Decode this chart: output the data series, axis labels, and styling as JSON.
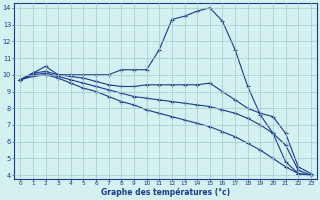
{
  "xlabel": "Graphe des températures (°c)",
  "bg_color": "#d4f0f0",
  "grid_color": "#a0cccc",
  "line_color": "#1a3a8a",
  "xlim": [
    -0.5,
    23.5
  ],
  "ylim": [
    3.8,
    14.3
  ],
  "yticks": [
    4,
    5,
    6,
    7,
    8,
    9,
    10,
    11,
    12,
    13,
    14
  ],
  "xticks": [
    0,
    1,
    2,
    3,
    4,
    5,
    6,
    7,
    8,
    9,
    10,
    11,
    12,
    13,
    14,
    15,
    16,
    17,
    18,
    19,
    20,
    21,
    22,
    23
  ],
  "series": [
    {
      "x": [
        0,
        1,
        2,
        3,
        4,
        5,
        6,
        7,
        8,
        9,
        10,
        11,
        12,
        13,
        14,
        15,
        16,
        17,
        18,
        19,
        20,
        21,
        22,
        23
      ],
      "y": [
        9.7,
        10.1,
        10.5,
        10.0,
        10.0,
        10.0,
        10.0,
        10.0,
        10.3,
        10.3,
        10.3,
        11.5,
        13.3,
        13.5,
        13.8,
        14.0,
        13.2,
        11.5,
        9.3,
        7.6,
        6.5,
        4.8,
        4.1,
        4.0
      ]
    },
    {
      "x": [
        0,
        1,
        2,
        3,
        4,
        5,
        6,
        7,
        8,
        9,
        10,
        11,
        12,
        13,
        14,
        15,
        16,
        17,
        18,
        19,
        20,
        21,
        22,
        23
      ],
      "y": [
        9.7,
        10.1,
        10.2,
        10.0,
        9.9,
        9.8,
        9.6,
        9.4,
        9.3,
        9.3,
        9.4,
        9.4,
        9.4,
        9.4,
        9.4,
        9.5,
        9.0,
        8.5,
        8.0,
        7.7,
        7.5,
        6.5,
        4.5,
        4.1
      ]
    },
    {
      "x": [
        0,
        1,
        2,
        3,
        4,
        5,
        6,
        7,
        8,
        9,
        10,
        11,
        12,
        13,
        14,
        15,
        16,
        17,
        18,
        19,
        20,
        21,
        22,
        23
      ],
      "y": [
        9.7,
        10.0,
        10.1,
        9.9,
        9.7,
        9.5,
        9.3,
        9.1,
        8.9,
        8.7,
        8.6,
        8.5,
        8.4,
        8.3,
        8.2,
        8.1,
        7.9,
        7.7,
        7.4,
        7.0,
        6.5,
        5.8,
        4.3,
        4.0
      ]
    },
    {
      "x": [
        0,
        1,
        2,
        3,
        4,
        5,
        6,
        7,
        8,
        9,
        10,
        11,
        12,
        13,
        14,
        15,
        16,
        17,
        18,
        19,
        20,
        21,
        22,
        23
      ],
      "y": [
        9.7,
        9.9,
        10.0,
        9.8,
        9.5,
        9.2,
        9.0,
        8.7,
        8.4,
        8.2,
        7.9,
        7.7,
        7.5,
        7.3,
        7.1,
        6.9,
        6.6,
        6.3,
        5.9,
        5.5,
        5.0,
        4.5,
        4.1,
        4.0
      ]
    }
  ]
}
